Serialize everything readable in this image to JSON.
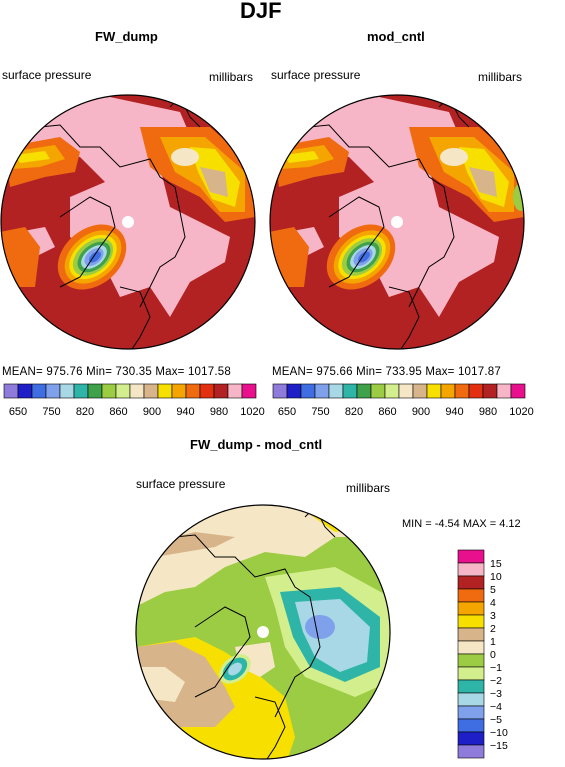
{
  "main_title": "DJF",
  "panels": [
    {
      "title": "FW_dump",
      "left_label": "surface pressure",
      "right_label": "millibars",
      "stats_text": "MEAN= 975.76   Min= 730.35   Max= 1017.58"
    },
    {
      "title": "mod_cntl",
      "left_label": "surface pressure",
      "right_label": "millibars",
      "stats_text": "MEAN= 975.66   Min= 733.95   Max= 1017.87"
    }
  ],
  "colorbar_top": {
    "colors": [
      "#8f7bd9",
      "#1f1fc8",
      "#3f6ee3",
      "#7fa0ea",
      "#a8d8e6",
      "#2fb5a8",
      "#3fa14a",
      "#9ccc43",
      "#d3ee8c",
      "#f5e7c6",
      "#d8b48b",
      "#f7e000",
      "#f5a500",
      "#f06a10",
      "#e33010",
      "#b22222",
      "#f7b6c8",
      "#e8108c"
    ],
    "tick_labels": [
      "650",
      "750",
      "820",
      "860",
      "900",
      "940",
      "980",
      "1020"
    ]
  },
  "diff_panel": {
    "title": "FW_dump - mod_cntl",
    "left_label": "surface pressure",
    "right_label": "millibars",
    "minmax_text": "MIN =   -4.54  MAX =    4.12"
  },
  "colorbar_diff": {
    "colors": [
      "#e8108c",
      "#f7b6c8",
      "#b22222",
      "#f06a10",
      "#f5a500",
      "#f7e000",
      "#d8b48b",
      "#f5e7c6",
      "#9ccc43",
      "#d3ee8c",
      "#2fb5a8",
      "#a8d8e6",
      "#7fa0ea",
      "#3f6ee3",
      "#1f1fc8",
      "#8f7bd9"
    ],
    "tick_labels": [
      "15",
      "10",
      "5",
      "4",
      "3",
      "2",
      "1",
      "0",
      "−1",
      "−2",
      "−3",
      "−4",
      "−5",
      "−10",
      "−15"
    ]
  }
}
